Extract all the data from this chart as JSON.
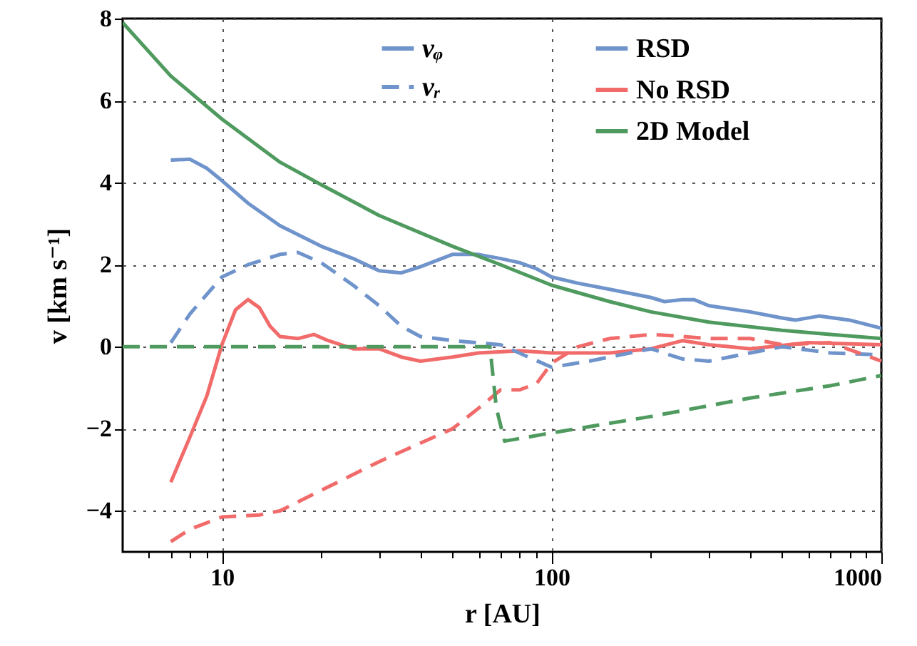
{
  "chart_data": {
    "type": "line",
    "xlabel": "r [AU]",
    "ylabel": "v [km s⁻¹]",
    "log": "x",
    "xlim": [
      5,
      1000
    ],
    "ylim": [
      -5,
      8
    ],
    "xticks": [
      {
        "value": 6,
        "label": null
      },
      {
        "value": 7,
        "label": null
      },
      {
        "value": 8,
        "label": null
      },
      {
        "value": 9,
        "label": null
      },
      {
        "value": 10,
        "label": "10"
      },
      {
        "value": 20,
        "label": null
      },
      {
        "value": 30,
        "label": null
      },
      {
        "value": 40,
        "label": null
      },
      {
        "value": 50,
        "label": null
      },
      {
        "value": 60,
        "label": null
      },
      {
        "value": 70,
        "label": null
      },
      {
        "value": 80,
        "label": null
      },
      {
        "value": 90,
        "label": null
      },
      {
        "value": 100,
        "label": "100"
      },
      {
        "value": 200,
        "label": null
      },
      {
        "value": 300,
        "label": null
      },
      {
        "value": 400,
        "label": null
      },
      {
        "value": 500,
        "label": null
      },
      {
        "value": 600,
        "label": null
      },
      {
        "value": 700,
        "label": null
      },
      {
        "value": 800,
        "label": null
      },
      {
        "value": 900,
        "label": null
      },
      {
        "value": 1000,
        "label": "1000"
      }
    ],
    "yticks": [
      -4,
      -2,
      0,
      2,
      4,
      6,
      8
    ],
    "grid": true,
    "legend": "top right",
    "marker": "none",
    "annotations": [
      "vᵩ",
      "vᵣ"
    ],
    "series": [
      {
        "name": "RSD",
        "color": "#6f93cb",
        "line_style": "solid",
        "x": [
          7,
          8,
          9,
          10,
          12,
          15,
          20,
          25,
          30,
          35,
          40,
          50,
          60,
          70,
          80,
          90,
          100,
          120,
          150,
          200,
          220,
          250,
          270,
          300,
          400,
          500,
          550,
          650,
          800,
          1000
        ],
        "values": [
          4.55,
          4.57,
          4.35,
          4.05,
          3.5,
          2.95,
          2.45,
          2.15,
          1.85,
          1.8,
          1.95,
          2.25,
          2.25,
          2.15,
          2.05,
          1.9,
          1.7,
          1.55,
          1.4,
          1.2,
          1.1,
          1.15,
          1.15,
          1.0,
          0.85,
          0.7,
          0.65,
          0.75,
          0.65,
          0.45
        ]
      },
      {
        "name": "No RSD",
        "color": "#f26b6b",
        "line_style": "solid",
        "x": [
          7,
          8,
          9,
          10,
          11,
          12,
          13,
          14,
          15,
          17,
          19,
          21,
          25,
          30,
          35,
          40,
          50,
          60,
          80,
          100,
          150,
          200,
          250,
          300,
          400,
          600,
          1000
        ],
        "values": [
          -3.3,
          -2.2,
          -1.2,
          0.05,
          0.9,
          1.15,
          0.95,
          0.5,
          0.25,
          0.2,
          0.3,
          0.15,
          -0.05,
          -0.05,
          -0.25,
          -0.35,
          -0.25,
          -0.15,
          -0.1,
          -0.15,
          -0.15,
          -0.05,
          0.15,
          0.05,
          -0.05,
          0.1,
          0.05
        ]
      },
      {
        "name": "2D Model",
        "color": "#4f9a5f",
        "line_style": "solid",
        "x": [
          5,
          7,
          10,
          15,
          20,
          30,
          50,
          70,
          100,
          150,
          200,
          300,
          500,
          700,
          1000
        ],
        "values": [
          7.9,
          6.6,
          5.55,
          4.5,
          3.95,
          3.2,
          2.45,
          2.0,
          1.5,
          1.1,
          0.85,
          0.6,
          0.4,
          0.3,
          0.2
        ]
      },
      {
        "color": "#6f93cb",
        "line_style": "dashed",
        "x": [
          7,
          8,
          10,
          12,
          15,
          17,
          20,
          25,
          30,
          35,
          40,
          50,
          70,
          100,
          130,
          200,
          250,
          300,
          400,
          500,
          700,
          1000
        ],
        "values": [
          0.1,
          0.8,
          1.7,
          2.0,
          2.25,
          2.3,
          2.05,
          1.5,
          1.0,
          0.5,
          0.25,
          0.15,
          0.05,
          -0.5,
          -0.35,
          -0.05,
          -0.3,
          -0.35,
          -0.15,
          0.0,
          -0.15,
          -0.2
        ]
      },
      {
        "color": "#f26b6b",
        "line_style": "dashed",
        "x": [
          7,
          8,
          10,
          13,
          15,
          20,
          30,
          50,
          60,
          70,
          80,
          90,
          100,
          120,
          150,
          200,
          250,
          300,
          400,
          500,
          700,
          1000
        ],
        "values": [
          -4.75,
          -4.45,
          -4.15,
          -4.1,
          -4.0,
          -3.5,
          -2.8,
          -2.0,
          -1.5,
          -1.05,
          -1.05,
          -0.9,
          -0.4,
          0.0,
          0.2,
          0.3,
          0.25,
          0.2,
          0.2,
          0.05,
          0.1,
          -0.35
        ]
      },
      {
        "color": "#4f9a5f",
        "line_style": "dashed",
        "x": [
          5,
          65,
          68,
          72,
          100,
          200,
          400,
          700,
          1000
        ],
        "values": [
          0,
          0,
          -1.5,
          -2.3,
          -2.1,
          -1.7,
          -1.25,
          -0.95,
          -0.7
        ]
      }
    ]
  }
}
